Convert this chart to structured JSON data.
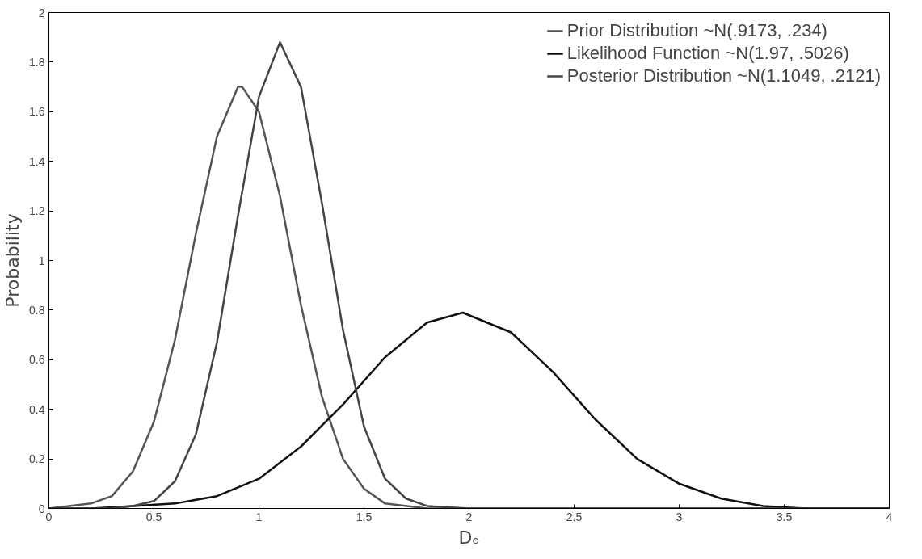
{
  "chart_data": {
    "type": "line",
    "xlabel": "Dₒ",
    "ylabel": "Probability",
    "xlim": [
      0,
      4
    ],
    "ylim": [
      0,
      2
    ],
    "xticks": [
      0,
      0.5,
      1,
      1.5,
      2,
      2.5,
      3,
      3.5,
      4
    ],
    "yticks": [
      0,
      0.2,
      0.4,
      0.6,
      0.8,
      1,
      1.2,
      1.4,
      1.6,
      1.8,
      2
    ],
    "grid": false,
    "legend": "top right",
    "marker": "none",
    "line_style": "solid",
    "series": [
      {
        "name": "Prior Distribution ~N(.9173, .234)",
        "color": "#555555",
        "x": [
          0,
          0.2,
          0.3,
          0.4,
          0.5,
          0.6,
          0.7,
          0.8,
          0.9,
          0.92,
          1.0,
          1.1,
          1.2,
          1.3,
          1.4,
          1.5,
          1.6,
          1.8,
          4.0
        ],
        "values": [
          0,
          0.02,
          0.05,
          0.15,
          0.35,
          0.68,
          1.11,
          1.5,
          1.7,
          1.7,
          1.6,
          1.26,
          0.82,
          0.45,
          0.2,
          0.08,
          0.02,
          0,
          0
        ]
      },
      {
        "name": "Likelihood Function ~N(1.97, .5026)",
        "color": "#111111",
        "x": [
          0,
          0.2,
          0.4,
          0.6,
          0.8,
          1.0,
          1.2,
          1.4,
          1.6,
          1.8,
          1.97,
          2.2,
          2.4,
          2.6,
          2.8,
          3.0,
          3.2,
          3.4,
          3.6,
          4.0
        ],
        "values": [
          0,
          0,
          0.01,
          0.02,
          0.05,
          0.12,
          0.25,
          0.42,
          0.61,
          0.75,
          0.79,
          0.71,
          0.55,
          0.36,
          0.2,
          0.1,
          0.04,
          0.01,
          0,
          0
        ]
      },
      {
        "name": "Posterior Distribution ~N(1.1049, .2121)",
        "color": "#444444",
        "x": [
          0,
          0.3,
          0.4,
          0.5,
          0.6,
          0.7,
          0.8,
          0.9,
          1.0,
          1.1,
          1.2,
          1.3,
          1.4,
          1.5,
          1.6,
          1.7,
          1.8,
          2.0,
          4.0
        ],
        "values": [
          0,
          0,
          0.01,
          0.03,
          0.11,
          0.3,
          0.67,
          1.18,
          1.66,
          1.88,
          1.7,
          1.23,
          0.72,
          0.33,
          0.12,
          0.04,
          0.01,
          0,
          0
        ]
      }
    ]
  }
}
